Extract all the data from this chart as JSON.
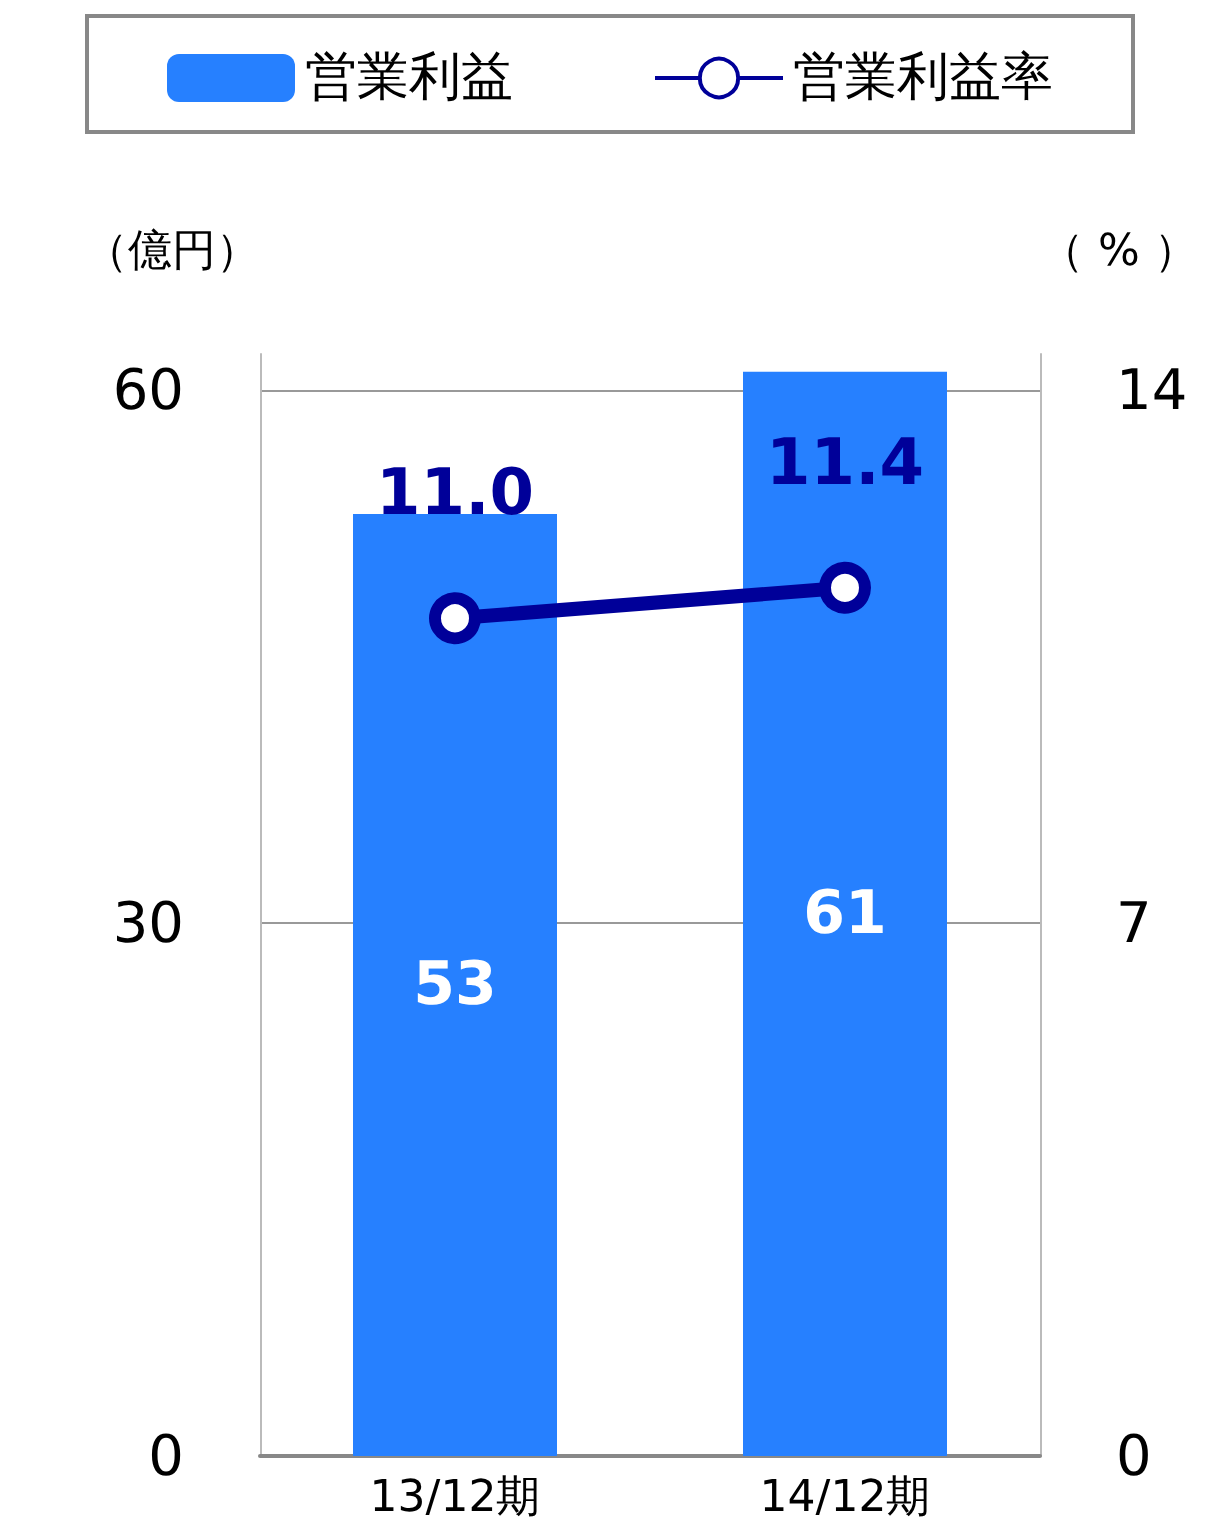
{
  "chart_data": {
    "type": "bar",
    "categories": [
      "13/12期",
      "14/12期"
    ],
    "ylabel": "（億円）",
    "y2label": "（ % ）",
    "ylim": [
      0,
      62
    ],
    "yticks": [
      0,
      30,
      60
    ],
    "y2lim": [
      0,
      14.47
    ],
    "y2ticks": [
      0,
      7,
      14
    ],
    "series": [
      {
        "name": "営業利益",
        "color": "#2680ff",
        "values": [
          53,
          61
        ],
        "value_labels": [
          "53",
          "61"
        ]
      },
      {
        "name": "営業利益率",
        "type": "line",
        "axis": "y2",
        "color": "#000099",
        "values": [
          11.0,
          11.4
        ],
        "value_labels": [
          "11.0",
          "11.4"
        ]
      }
    ],
    "marker": "circle",
    "grid": "y",
    "legend": "top"
  }
}
